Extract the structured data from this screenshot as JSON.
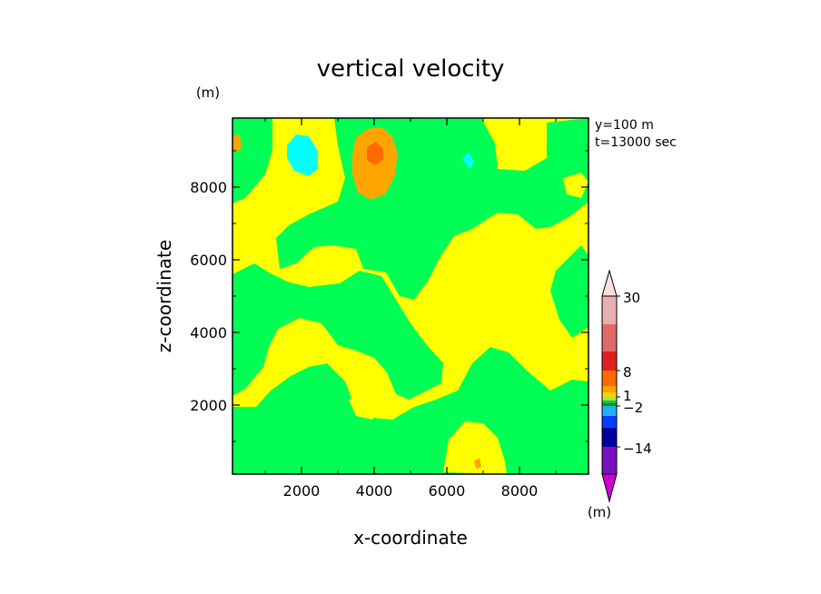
{
  "chart_data": {
    "type": "heatmap",
    "title": "vertical velocity",
    "xlabel": "x-coordinate",
    "ylabel": "z-coordinate",
    "y_unit": "(m)",
    "x_unit": "(m)",
    "xlim": [
      100,
      9900
    ],
    "ylim": [
      100,
      9900
    ],
    "x_ticks": [
      2000,
      4000,
      6000,
      8000
    ],
    "y_ticks": [
      2000,
      4000,
      6000,
      8000
    ],
    "x_tick_labels": [
      "2000",
      "4000",
      "6000",
      "8000"
    ],
    "y_tick_labels": [
      "2000",
      "4000",
      "6000",
      "8000"
    ],
    "annotations": [
      "y=100 m",
      "t=13000 sec"
    ],
    "colorbar": {
      "labels": [
        "30",
        "8",
        "1",
        "−2",
        "−14"
      ],
      "unit": "(m)",
      "colors": [
        "#e8b0b0",
        "#e06a6a",
        "#e02020",
        "#ff6a00",
        "#ffa000",
        "#ffd000",
        "#90ee50",
        "#20c040",
        "#00a000",
        "#20b0ff",
        "#0040ff",
        "#0000a0",
        "#7a10c0",
        "#c000c0"
      ]
    },
    "contour_colors": {
      "background": "#ffff00",
      "weak_negative": "#00ff55",
      "positive": "#ffa500",
      "negative": "#00ffff",
      "strong_positive": "#ff6a00"
    }
  }
}
